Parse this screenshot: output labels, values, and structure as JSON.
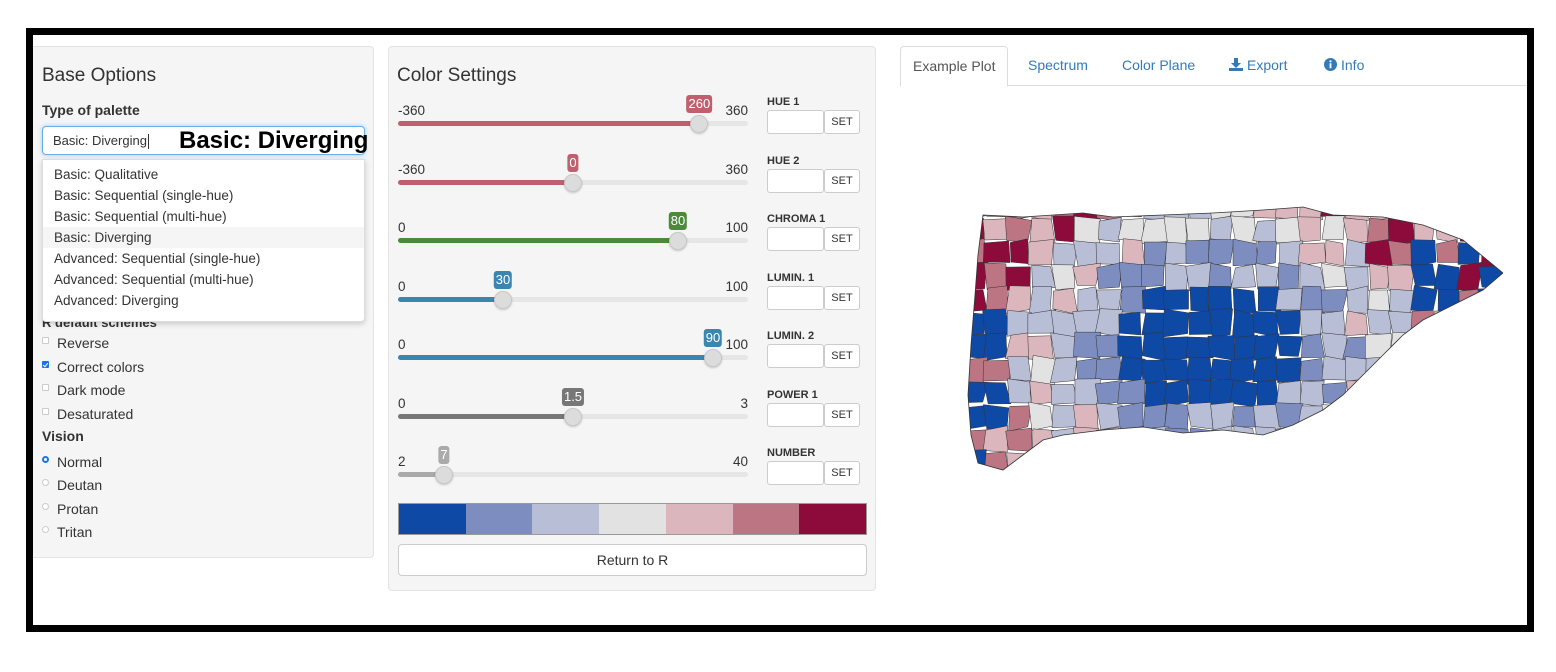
{
  "base": {
    "title": "Base Options",
    "type_label": "Type of palette",
    "selected": "Basic: Diverging",
    "ghost": "Basic: Diverging",
    "options": [
      "Basic: Qualitative",
      "Basic: Sequential (single-hue)",
      "Basic: Sequential (multi-hue)",
      "Basic: Diverging",
      "Advanced: Sequential (single-hue)",
      "Advanced: Sequential (multi-hue)",
      "Advanced: Diverging"
    ],
    "hidden_heading": "R default schemes",
    "checks": [
      {
        "label": "Reverse",
        "checked": false
      },
      {
        "label": "Correct colors",
        "checked": true
      },
      {
        "label": "Dark mode",
        "checked": false
      },
      {
        "label": "Desaturated",
        "checked": false
      }
    ],
    "vision_label": "Vision",
    "vision": [
      {
        "label": "Normal",
        "checked": true
      },
      {
        "label": "Deutan",
        "checked": false
      },
      {
        "label": "Protan",
        "checked": false
      },
      {
        "label": "Tritan",
        "checked": false
      }
    ]
  },
  "color": {
    "title": "Color Settings",
    "sliders": [
      {
        "min": -360,
        "max": 360,
        "value": 260,
        "min_label": "-360",
        "max_label": "360",
        "value_label": "260",
        "color": "#c0606f",
        "set_label": "HUE 1"
      },
      {
        "min": -360,
        "max": 360,
        "value": 0,
        "min_label": "-360",
        "max_label": "360",
        "value_label": "0",
        "color": "#c0606f",
        "set_label": "HUE 2"
      },
      {
        "min": 0,
        "max": 100,
        "value": 80,
        "min_label": "0",
        "max_label": "100",
        "value_label": "80",
        "color": "#4a8a3a",
        "set_label": "CHROMA 1"
      },
      {
        "min": 0,
        "max": 100,
        "value": 30,
        "min_label": "0",
        "max_label": "100",
        "value_label": "30",
        "color": "#3b86b0",
        "set_label": "LUMIN. 1"
      },
      {
        "min": 0,
        "max": 100,
        "value": 90,
        "min_label": "0",
        "max_label": "100",
        "value_label": "90",
        "color": "#3b86b0",
        "set_label": "LUMIN. 2"
      },
      {
        "min": 0,
        "max": 3,
        "value": 1.5,
        "min_label": "0",
        "max_label": "3",
        "value_label": "1.5",
        "color": "#777777",
        "set_label": "POWER 1"
      },
      {
        "min": 2,
        "max": 40,
        "value": 7,
        "min_label": "2",
        "max_label": "40",
        "value_label": "7",
        "color": "#aaaaaa",
        "set_label": "NUMBER"
      }
    ],
    "set_button": "SET",
    "swatches": [
      "#0f49a6",
      "#7d8dbf",
      "#b8bed6",
      "#e2e2e2",
      "#dbb7bd",
      "#bc7583",
      "#8c0b3b"
    ],
    "return_label": "Return to R"
  },
  "tabs": [
    {
      "label": "Example Plot",
      "active": true,
      "icon": ""
    },
    {
      "label": "Spectrum",
      "active": false,
      "icon": ""
    },
    {
      "label": "Color Plane",
      "active": false,
      "icon": ""
    },
    {
      "label": "Export",
      "active": false,
      "icon": "download-icon"
    },
    {
      "label": "Info",
      "active": false,
      "icon": "info-icon"
    }
  ],
  "map": {
    "palette": [
      "#0f49a6",
      "#7d8dbf",
      "#b8bed6",
      "#e2e2e2",
      "#dbb7bd",
      "#bc7583",
      "#8c0b3b"
    ]
  }
}
